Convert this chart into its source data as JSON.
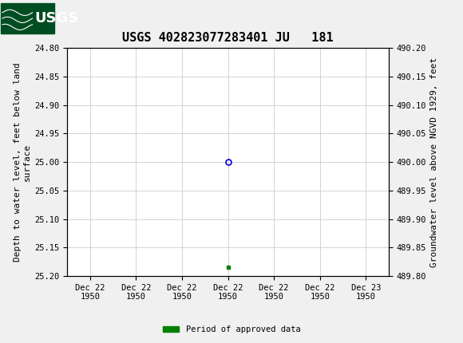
{
  "title": "USGS 402823077283401 JU   181",
  "left_ylabel": "Depth to water level, feet below land\nsurface",
  "right_ylabel": "Groundwater level above NGVD 1929, feet",
  "ylim_left": [
    24.8,
    25.2
  ],
  "ylim_right": [
    489.8,
    490.2
  ],
  "left_yticks": [
    24.8,
    24.85,
    24.9,
    24.95,
    25.0,
    25.05,
    25.1,
    25.15,
    25.2
  ],
  "right_yticks": [
    490.2,
    490.15,
    490.1,
    490.05,
    490.0,
    489.95,
    489.9,
    489.85,
    489.8
  ],
  "data_point_x": 3,
  "data_point_y_depth": 25.0,
  "data_point_color": "#0000cc",
  "data_point_marker": "o",
  "data_point_marker_size": 5,
  "approved_x": 3,
  "approved_y_depth": 25.185,
  "approved_color": "#008000",
  "approved_marker": "s",
  "approved_marker_size": 3,
  "x_tick_labels": [
    "Dec 22\n1950",
    "Dec 22\n1950",
    "Dec 22\n1950",
    "Dec 22\n1950",
    "Dec 22\n1950",
    "Dec 22\n1950",
    "Dec 23\n1950"
  ],
  "x_ticks": [
    0,
    1,
    2,
    3,
    4,
    5,
    6
  ],
  "x_lim": [
    -0.5,
    6.5
  ],
  "grid_color": "#cccccc",
  "background_color": "#f0f0f0",
  "plot_bg_color": "#ffffff",
  "header_color": "#006633",
  "header_text_color": "#ffffff",
  "legend_label": "Period of approved data",
  "legend_color": "#008000",
  "font_family": "monospace",
  "title_fontsize": 11,
  "axis_label_fontsize": 8,
  "tick_fontsize": 7.5
}
